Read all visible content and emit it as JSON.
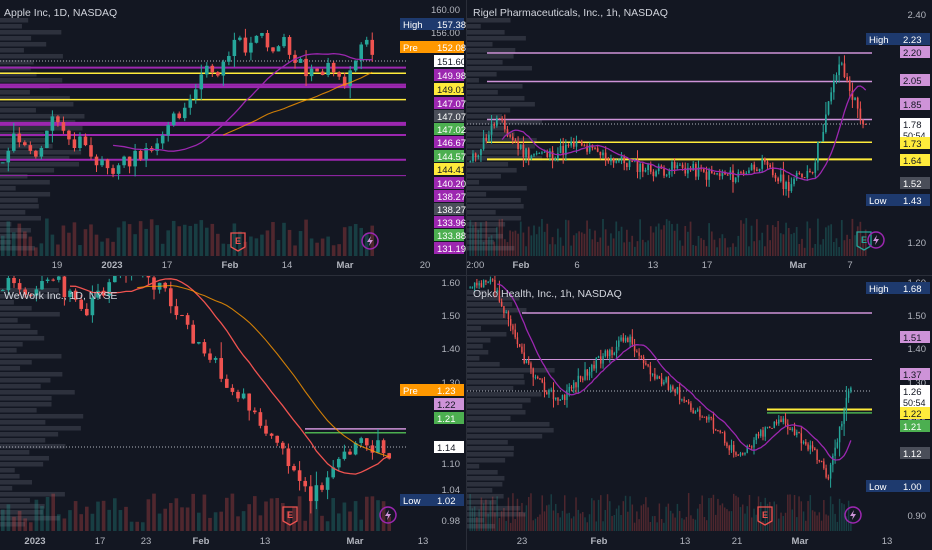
{
  "colors": {
    "background": "#131722",
    "up": "#26a69a",
    "down": "#ef5350",
    "magenta": "#9c27b0",
    "violet": "#ce93d8",
    "yellow": "#ffeb3b",
    "orange": "#ff9800",
    "text": "#d1d4dc",
    "axis_text": "#b2b5be"
  },
  "icons": [
    "earnings-icon",
    "dividend-lightning-icon"
  ],
  "chart_data": [
    {
      "type": "candlestick",
      "title": "Apple Inc, 1D, NASDAQ",
      "x_ticks": [
        "19",
        "2023",
        "17",
        "Feb",
        "14",
        "Mar",
        "20"
      ],
      "y_ticks": [
        "160.00",
        "156.00"
      ],
      "ylim": [
        130,
        160
      ],
      "price_labels": [
        {
          "text": "High",
          "value": "157.38",
          "kind": "high"
        },
        {
          "text": "Pre",
          "value": "152.08",
          "kind": "pre"
        },
        {
          "value": "151.60",
          "kind": "white"
        },
        {
          "value": "149.98",
          "kind": "magenta"
        },
        {
          "value": "149.01",
          "kind": "yellow"
        },
        {
          "value": "147.07",
          "kind": "magenta"
        },
        {
          "value": "147.07",
          "kind": "gray"
        },
        {
          "value": "147.02",
          "kind": "green"
        },
        {
          "value": "146.67",
          "kind": "magenta"
        },
        {
          "value": "144.57",
          "kind": "green"
        },
        {
          "value": "144.41",
          "kind": "yellow"
        },
        {
          "value": "140.20",
          "kind": "magenta"
        },
        {
          "value": "138.27",
          "kind": "magenta"
        },
        {
          "value": "138.27",
          "kind": "gray"
        },
        {
          "value": "133.96",
          "kind": "magenta"
        },
        {
          "value": "133.88",
          "kind": "green"
        },
        {
          "value": "131.19",
          "kind": "magenta"
        }
      ],
      "closes": [
        133.5,
        135.5,
        138.5,
        137,
        136.5,
        135.5,
        134.5,
        136,
        139,
        141.5,
        140.5,
        139,
        137.5,
        136,
        138,
        136.5,
        134.5,
        133,
        134,
        132.5,
        131.5,
        133,
        134.5,
        132.8,
        135.5,
        134,
        136,
        135.5,
        136.8,
        138.2,
        140,
        142,
        141.2,
        143,
        144.5,
        146.2,
        148.8,
        150.3,
        149.2,
        148.6,
        151,
        152,
        154.8,
        155.2,
        152.6,
        154.3,
        155.5,
        156,
        153.5,
        152.8,
        153.7,
        155.3,
        152.2,
        150.8,
        151.5,
        148.5,
        149.8,
        149.3,
        148.7,
        150.8,
        149.2,
        148.4,
        146.8,
        149.5,
        151.2,
        154,
        154.8,
        152.2
      ]
    },
    {
      "type": "candlestick",
      "title": "Rigel Pharmaceuticals, Inc., 1h, NASDAQ",
      "x_ticks": [
        "2:00",
        "Feb",
        "6",
        "13",
        "17",
        "Mar",
        "7"
      ],
      "y_ticks": [
        "2.40",
        "1.20"
      ],
      "ylim": [
        1.15,
        2.45
      ],
      "price_labels": [
        {
          "text": "High",
          "value": "2.23",
          "kind": "high"
        },
        {
          "value": "2.20",
          "kind": "violet"
        },
        {
          "value": "2.05",
          "kind": "violet"
        },
        {
          "value": "1.85",
          "kind": "violet"
        },
        {
          "value": "1.78",
          "sub": "50:54",
          "kind": "white"
        },
        {
          "value": "1.73",
          "kind": "yellow"
        },
        {
          "value": "1.64",
          "kind": "yellow"
        },
        {
          "value": "1.52",
          "kind": "gray"
        },
        {
          "text": "Low",
          "value": "1.43",
          "kind": "low"
        }
      ]
    },
    {
      "type": "candlestick",
      "title": "WeWork Inc., 1D, NYSE",
      "x_ticks": [
        "2023",
        "17",
        "23",
        "Feb",
        "13",
        "Mar",
        "13"
      ],
      "y_ticks": [
        "1.60",
        "1.50",
        "1.40",
        "1.30",
        "1.10",
        "1.04",
        "0.98"
      ],
      "ylim": [
        0.96,
        1.62
      ],
      "price_labels": [
        {
          "text": "Pre",
          "value": "1.23",
          "kind": "pre"
        },
        {
          "value": "1.22",
          "kind": "violet"
        },
        {
          "value": "1.21",
          "kind": "green"
        },
        {
          "value": "1.14",
          "kind": "white"
        },
        {
          "text": "Low",
          "value": "1.02",
          "kind": "low"
        }
      ]
    },
    {
      "type": "candlestick",
      "title": "Opko Health, Inc., 1h, NASDAQ",
      "x_ticks": [
        "23",
        "Feb",
        "13",
        "21",
        "Mar",
        "13"
      ],
      "y_ticks": [
        "1.60",
        "1.50",
        "1.40",
        "1.30",
        "1.20",
        "1.10",
        "0.90"
      ],
      "ylim": [
        0.88,
        1.72
      ],
      "price_labels": [
        {
          "text": "High",
          "value": "1.68",
          "kind": "high"
        },
        {
          "value": "1.51",
          "kind": "violet"
        },
        {
          "value": "1.37",
          "kind": "violet"
        },
        {
          "value": "1.26",
          "sub": "50:54",
          "kind": "white"
        },
        {
          "value": "1.22",
          "kind": "yellow"
        },
        {
          "value": "1.21",
          "kind": "green"
        },
        {
          "value": "1.12",
          "kind": "gray"
        },
        {
          "text": "Low",
          "value": "1.00",
          "kind": "low"
        }
      ]
    }
  ]
}
